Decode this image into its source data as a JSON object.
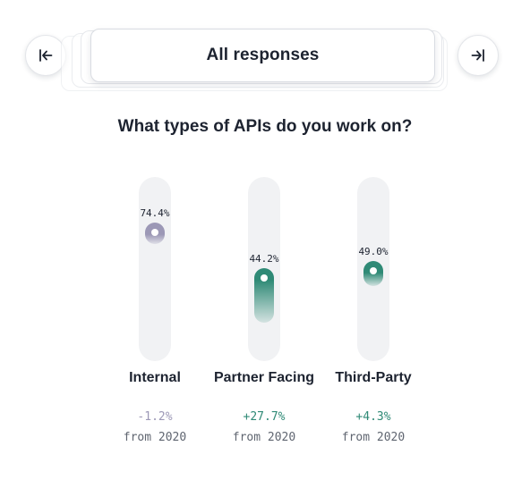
{
  "selector": {
    "label": "All responses",
    "prev_icon": "arrow-to-left-icon",
    "next_icon": "arrow-to-right-icon"
  },
  "question": "What types of APIs do you work on?",
  "colors": {
    "negative": "#9c98b6",
    "positive": "#2f8a76",
    "track": "#f1f2f4",
    "text": "#1d2330"
  },
  "chart_data": {
    "type": "range-dot",
    "title": "What types of APIs do you work on?",
    "unit": "%",
    "ylim": [
      0,
      100
    ],
    "categories": [
      "Internal",
      "Partner Facing",
      "Third-Party"
    ],
    "values": [
      74.4,
      44.2,
      49.0
    ],
    "value_labels": [
      "74.4%",
      "44.2%",
      "49.0%"
    ],
    "changes": [
      -1.2,
      27.7,
      4.3
    ],
    "change_labels": [
      "-1.2%",
      "+27.7%",
      "+4.3%"
    ],
    "change_caption": "from 2020"
  }
}
